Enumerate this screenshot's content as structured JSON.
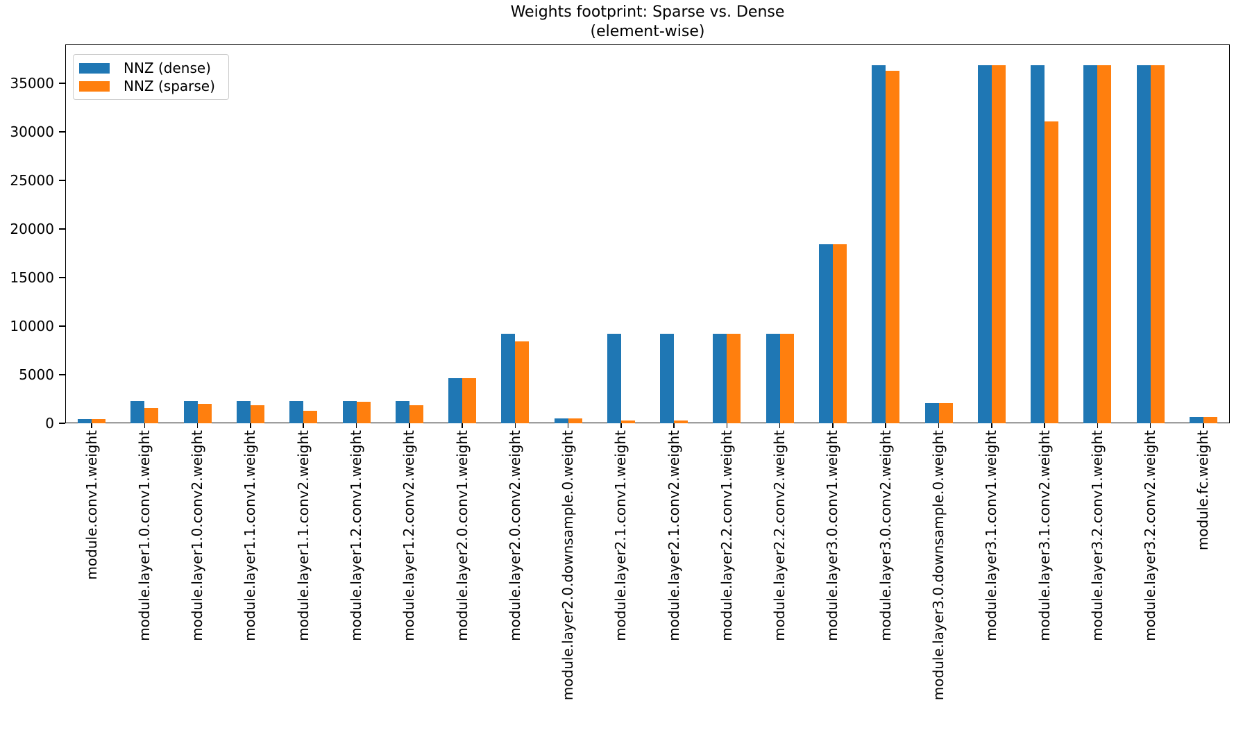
{
  "chart_data": {
    "type": "bar",
    "title_lines": [
      "Weights footprint: Sparse vs. Dense",
      "(element-wise)"
    ],
    "xlabel": "",
    "ylabel": "",
    "grid": false,
    "legend_position": "upper left",
    "ylim": [
      0,
      39000
    ],
    "yticks": [
      0,
      5000,
      10000,
      15000,
      20000,
      25000,
      30000,
      35000
    ],
    "categories": [
      "module.conv1.weight",
      "module.layer1.0.conv1.weight",
      "module.layer1.0.conv2.weight",
      "module.layer1.1.conv1.weight",
      "module.layer1.1.conv2.weight",
      "module.layer1.2.conv1.weight",
      "module.layer1.2.conv2.weight",
      "module.layer2.0.conv1.weight",
      "module.layer2.0.conv2.weight",
      "module.layer2.0.downsample.0.weight",
      "module.layer2.1.conv1.weight",
      "module.layer2.1.conv2.weight",
      "module.layer2.2.conv1.weight",
      "module.layer2.2.conv2.weight",
      "module.layer3.0.conv1.weight",
      "module.layer3.0.conv2.weight",
      "module.layer3.0.downsample.0.weight",
      "module.layer3.1.conv1.weight",
      "module.layer3.1.conv2.weight",
      "module.layer3.2.conv1.weight",
      "module.layer3.2.conv2.weight",
      "module.fc.weight"
    ],
    "series": [
      {
        "name": "NNZ (dense)",
        "color": "#1f77b4",
        "values": [
          432,
          2304,
          2304,
          2304,
          2304,
          2304,
          2304,
          4608,
          9216,
          512,
          9216,
          9216,
          9216,
          9216,
          18432,
          36864,
          2048,
          36864,
          36864,
          36864,
          36864,
          640
        ]
      },
      {
        "name": "NNZ (sparse)",
        "color": "#ff7f0e",
        "values": [
          432,
          1600,
          2020,
          1860,
          1290,
          2190,
          1880,
          4608,
          8400,
          512,
          320,
          320,
          9216,
          9216,
          18432,
          36300,
          2048,
          36864,
          31100,
          36864,
          36864,
          640
        ]
      }
    ]
  }
}
